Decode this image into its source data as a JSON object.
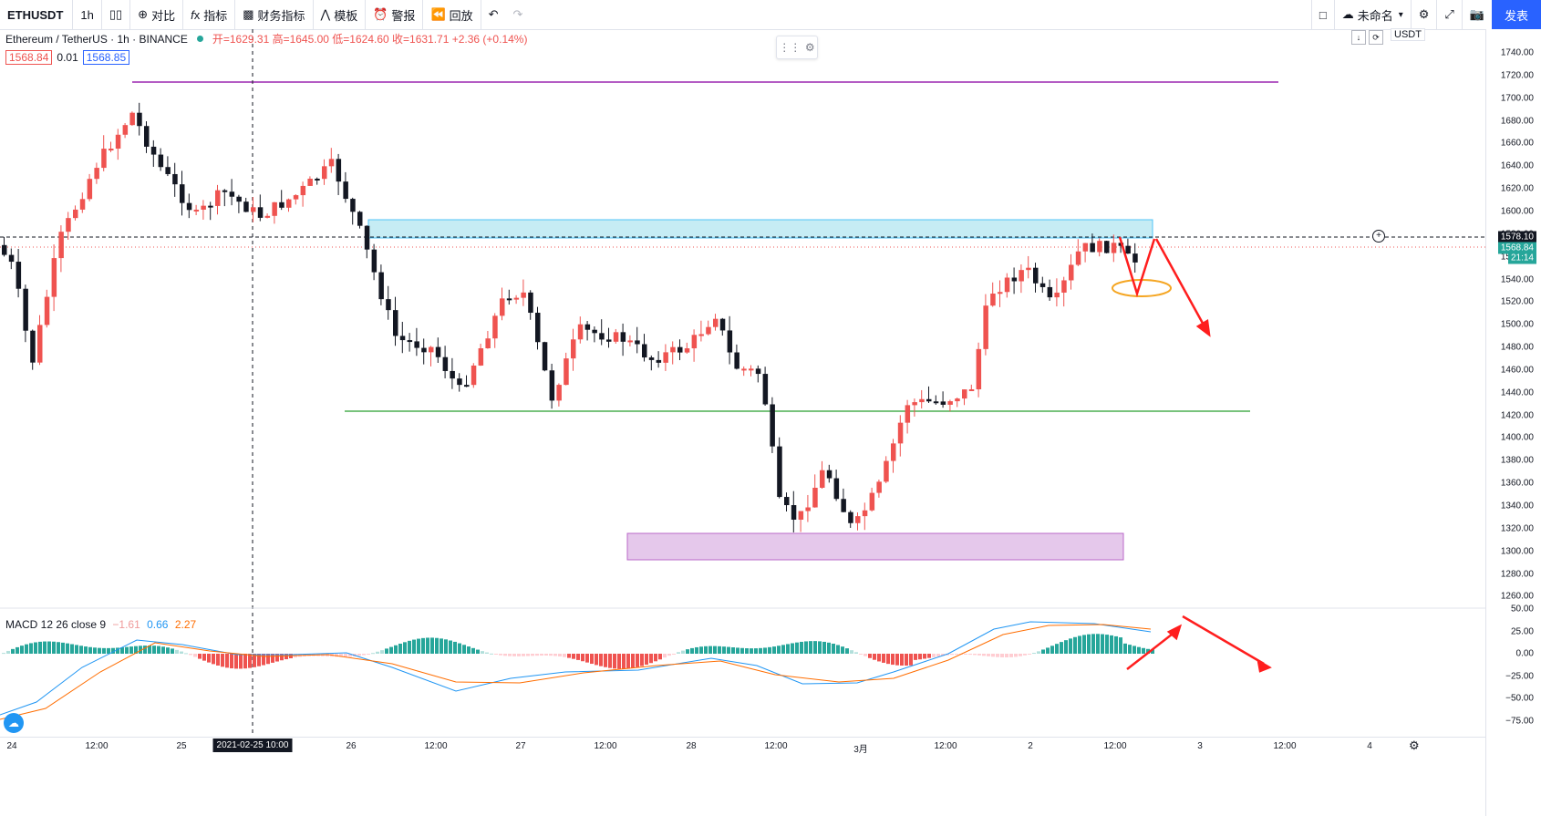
{
  "toolbar": {
    "symbol": "ETHUSDT",
    "interval": "1h",
    "compare": "对比",
    "indicators": "指标",
    "financials": "财务指标",
    "templates": "模板",
    "alerts": "警报",
    "replay": "回放",
    "layout_name": "未命名",
    "publish": "发表"
  },
  "legend": {
    "pair": "Ethereum / TetherUS · 1h · BINANCE",
    "ohlc": "开=1629.31 高=1645.00 低=1624.60 收=1631.71 +2.36 (+0.14%)",
    "bid": "1568.84",
    "spread": "0.01",
    "ask": "1568.85"
  },
  "macd": {
    "label": "MACD 12 26 close 9",
    "hist": "−1.61",
    "macd": "0.66",
    "signal": "2.27"
  },
  "axis": {
    "currency": "USDT",
    "price_ticks": [
      "1740.00",
      "1720.00",
      "1700.00",
      "1680.00",
      "1660.00",
      "1640.00",
      "1620.00",
      "1600.00",
      "1580.00",
      "1560.00",
      "1540.00",
      "1520.00",
      "1500.00",
      "1480.00",
      "1460.00",
      "1440.00",
      "1420.00",
      "1400.00",
      "1380.00",
      "1360.00",
      "1340.00",
      "1320.00",
      "1300.00",
      "1280.00",
      "1260.00"
    ],
    "macd_ticks": [
      "50.00",
      "25.00",
      "0.00",
      "−25.00",
      "−50.00",
      "−75.00"
    ],
    "crosshair_price": "1578.10",
    "last_price": "1568.84",
    "countdown": "21:14"
  },
  "time_axis": {
    "labels": [
      "24",
      "12:00",
      "25",
      "26",
      "12:00",
      "27",
      "12:00",
      "28",
      "12:00",
      "3月",
      "12:00",
      "2",
      "12:00",
      "3",
      "12:00",
      "4"
    ],
    "crosshair_time": "2021-02-25   10:00"
  },
  "colors": {
    "up": "#ef5350",
    "down": "#131722",
    "resistance_zone": "#b3e5f0",
    "support_zone": "#e1bee7",
    "top_line": "#9c27b0",
    "support_line": "#4caf50",
    "annotation_arrow": "#ff1e1e",
    "highlight_ellipse": "#f5a623",
    "macd_line": "#2196f3",
    "signal_line": "#ff6d00"
  }
}
